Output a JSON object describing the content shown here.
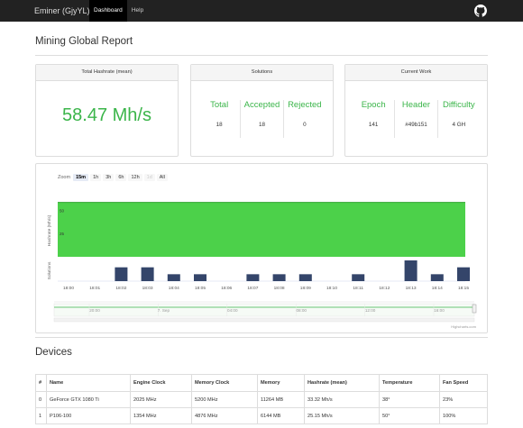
{
  "navbar": {
    "brand": "Eminer (GjyYL)",
    "items": [
      {
        "label": "Dashboard",
        "active": true
      },
      {
        "label": "Help",
        "active": false
      }
    ],
    "github_icon": "github-icon"
  },
  "page_title": "Mining Global Report",
  "panels": {
    "hashrate": {
      "heading": "Total Hashrate (mean)",
      "value": "58.47 Mh/s"
    },
    "solutions": {
      "heading": "Solutions",
      "cols": [
        {
          "label": "Total",
          "value": "18"
        },
        {
          "label": "Accepted",
          "value": "18"
        },
        {
          "label": "Rejected",
          "value": "0"
        }
      ]
    },
    "work": {
      "heading": "Current Work",
      "cols": [
        {
          "label": "Epoch",
          "value": "141"
        },
        {
          "label": "Header",
          "value": "#49b151"
        },
        {
          "label": "Difficulty",
          "value": "4 GH"
        }
      ]
    }
  },
  "zoom": {
    "label": "Zoom",
    "buttons": [
      {
        "label": "15m",
        "state": "selected"
      },
      {
        "label": "1h",
        "state": "normal"
      },
      {
        "label": "3h",
        "state": "normal"
      },
      {
        "label": "6h",
        "state": "normal"
      },
      {
        "label": "12h",
        "state": "normal"
      },
      {
        "label": "1d",
        "state": "disabled"
      },
      {
        "label": "All",
        "state": "normal"
      }
    ]
  },
  "chart_data": {
    "type": "area",
    "hashrate_axis_label": "Hashrate (Mh/s)",
    "solutions_axis_label": "Solutions",
    "hashrate_ticks": [
      "50",
      "25"
    ],
    "hashrate_value": 58.47,
    "hashrate_ylim": [
      0,
      60
    ],
    "solutions_ylim": [
      0,
      3
    ],
    "x_ticks": [
      "18:00",
      "18:01",
      "18:02",
      "18:03",
      "18:04",
      "18:05",
      "18:06",
      "18:07",
      "18:08",
      "18:09",
      "18:10",
      "18:11",
      "18:12",
      "18:13",
      "18:14",
      "18:15"
    ],
    "solutions": [
      {
        "x": "18:02",
        "value": 2
      },
      {
        "x": "18:03",
        "value": 2
      },
      {
        "x": "18:04",
        "value": 1
      },
      {
        "x": "18:05",
        "value": 1
      },
      {
        "x": "18:07",
        "value": 1
      },
      {
        "x": "18:08",
        "value": 1
      },
      {
        "x": "18:09",
        "value": 1
      },
      {
        "x": "18:11",
        "value": 1
      },
      {
        "x": "18:13",
        "value": 3
      },
      {
        "x": "18:14",
        "value": 1
      },
      {
        "x": "18:15",
        "value": 2
      }
    ],
    "navigator_ticks": [
      "20:00",
      "7. Sep",
      "04:00",
      "08:00",
      "12:00",
      "16:00"
    ],
    "credit": "Highcharts.com",
    "colors": {
      "area": "#4cd14a",
      "area_line": "#2fa52f",
      "bars": "#34456a",
      "navigator": "#3bb54a"
    }
  },
  "devices": {
    "title": "Devices",
    "columns": [
      "#",
      "Name",
      "Engine Clock",
      "Memory Clock",
      "Memory",
      "Hashrate (mean)",
      "Temperature",
      "Fan Speed"
    ],
    "rows": [
      [
        "0",
        "GeForce GTX 1080 Ti",
        "2025 MHz",
        "5200 MHz",
        "11264 MB",
        "33.32 Mh/s",
        "38°",
        "23%"
      ],
      [
        "1",
        "P106-100",
        "1354 MHz",
        "4876 MHz",
        "6144 MB",
        "25.15 Mh/s",
        "50°",
        "100%"
      ]
    ]
  }
}
